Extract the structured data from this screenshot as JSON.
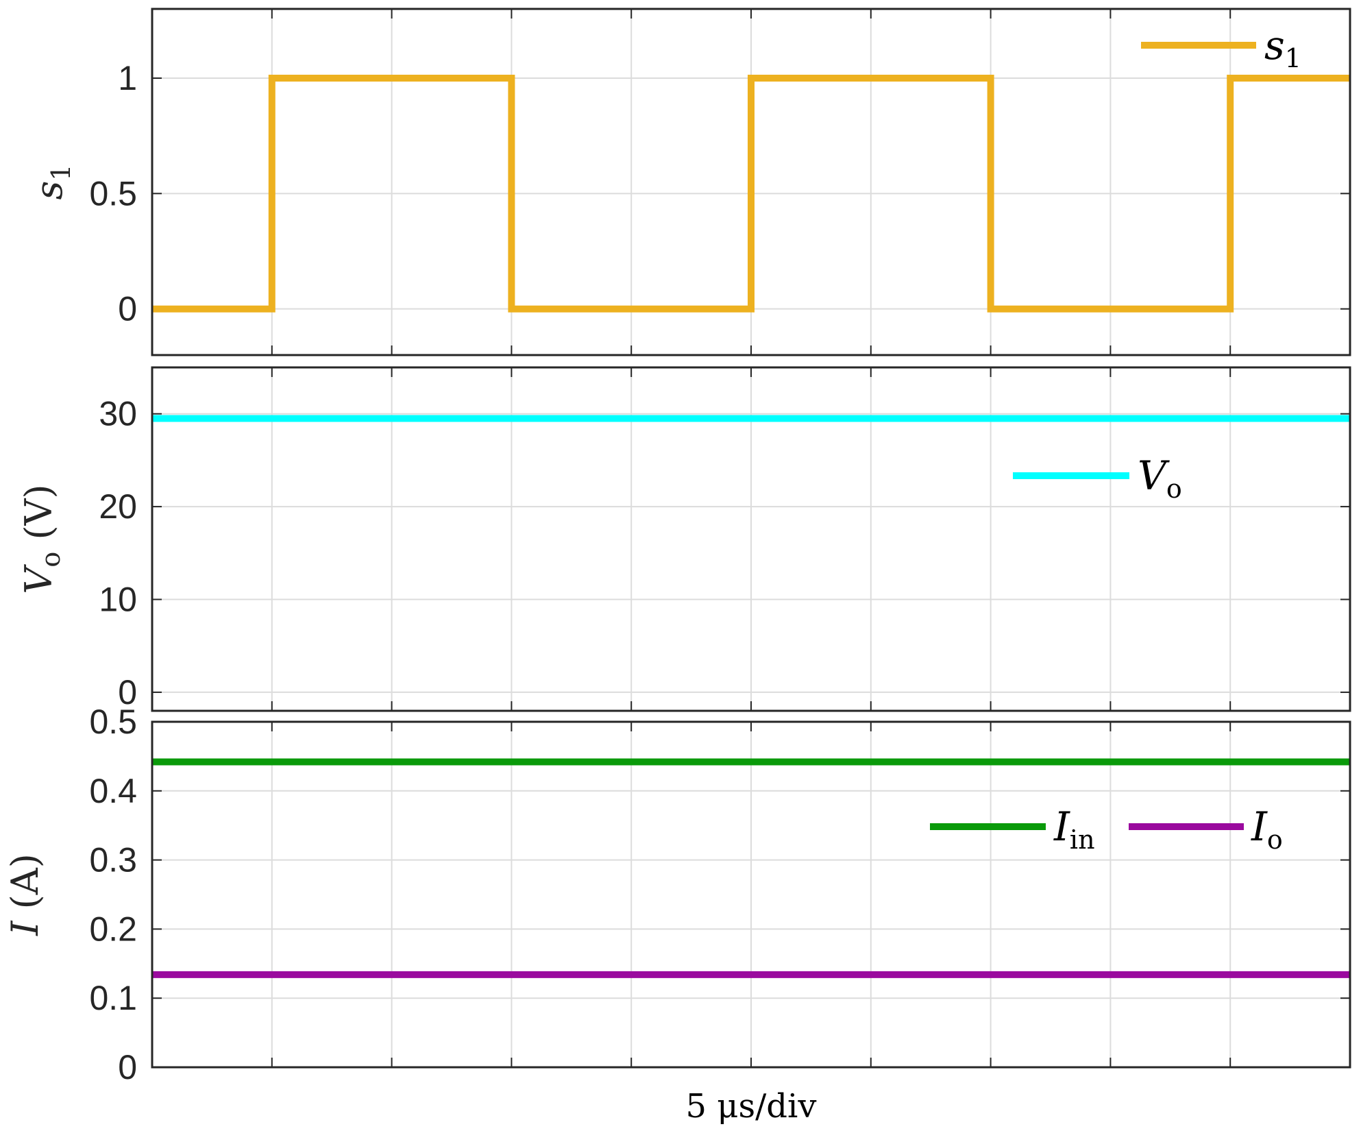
{
  "chart_data": [
    {
      "type": "line",
      "ylabel": {
        "main": "s",
        "sub": "1"
      },
      "ylim": [
        -0.2,
        1.3
      ],
      "yticks": [
        0,
        0.5,
        1
      ],
      "ytick_labels": [
        "0",
        "0.5",
        "1"
      ],
      "xlim": [
        0,
        50
      ],
      "x_grid_divisions": 10,
      "grid": true,
      "legend_location": "top-right",
      "series": [
        {
          "name": "s",
          "name_sub": "1",
          "color": "#EDB120",
          "x": [
            0,
            5,
            5,
            15,
            15,
            25,
            25,
            35,
            35,
            45,
            45,
            50
          ],
          "y": [
            0,
            0,
            1,
            1,
            0,
            0,
            1,
            1,
            0,
            0,
            1,
            1
          ]
        }
      ]
    },
    {
      "type": "line",
      "ylabel": {
        "main": "V",
        "sub": "o",
        "unit": " (V)"
      },
      "ylim": [
        -2,
        35
      ],
      "yticks": [
        0,
        10,
        20,
        30
      ],
      "ytick_labels": [
        "0",
        "10",
        "20",
        "30"
      ],
      "xlim": [
        0,
        50
      ],
      "x_grid_divisions": 10,
      "grid": true,
      "legend_location": "right",
      "series": [
        {
          "name": "V",
          "name_sub": "o",
          "color": "#00FFFF",
          "x": [
            0,
            50
          ],
          "y": [
            29.5,
            29.5
          ]
        }
      ]
    },
    {
      "type": "line",
      "ylabel": {
        "main": "I",
        "sub": "",
        "unit": " (A)"
      },
      "ylim": [
        0,
        0.5
      ],
      "yticks": [
        0,
        0.1,
        0.2,
        0.3,
        0.4,
        0.5
      ],
      "ytick_labels": [
        "0",
        "0.1",
        "0.2",
        "0.3",
        "0.4",
        "0.5"
      ],
      "xlim": [
        0,
        50
      ],
      "x_grid_divisions": 10,
      "grid": true,
      "legend_location": "right",
      "xlabel": "5 μs/div",
      "series": [
        {
          "name": "I",
          "name_sub": "in",
          "color": "#0A9A0A",
          "x": [
            0,
            50
          ],
          "y": [
            0.442,
            0.442
          ]
        },
        {
          "name": "I",
          "name_sub": "o",
          "color": "#9A0A9E",
          "x": [
            0,
            50
          ],
          "y": [
            0.134,
            0.134
          ]
        }
      ]
    }
  ]
}
